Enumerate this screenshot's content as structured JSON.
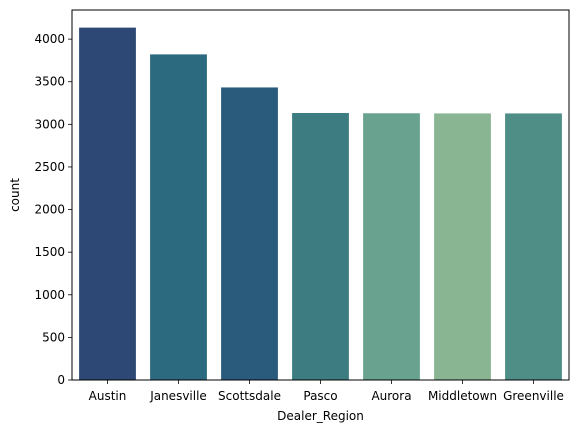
{
  "chart_data": {
    "type": "bar",
    "title": "",
    "xlabel": "Dealer_Region",
    "ylabel": "count",
    "categories": [
      "Austin",
      "Janesville",
      "Scottsdale",
      "Pasco",
      "Aurora",
      "Middletown",
      "Greenville"
    ],
    "values": [
      4135,
      3821,
      3433,
      3133,
      3130,
      3128,
      3128
    ],
    "colors": [
      "#2d4875",
      "#2c6a80",
      "#2a5a7c",
      "#3d7c80",
      "#69a28f",
      "#8ab593",
      "#4f8e87"
    ],
    "ylim": [
      0,
      4341.75
    ],
    "yticks": [
      0,
      500,
      1000,
      1500,
      2000,
      2500,
      3000,
      3500,
      4000
    ],
    "grid": false,
    "legend": "none"
  }
}
